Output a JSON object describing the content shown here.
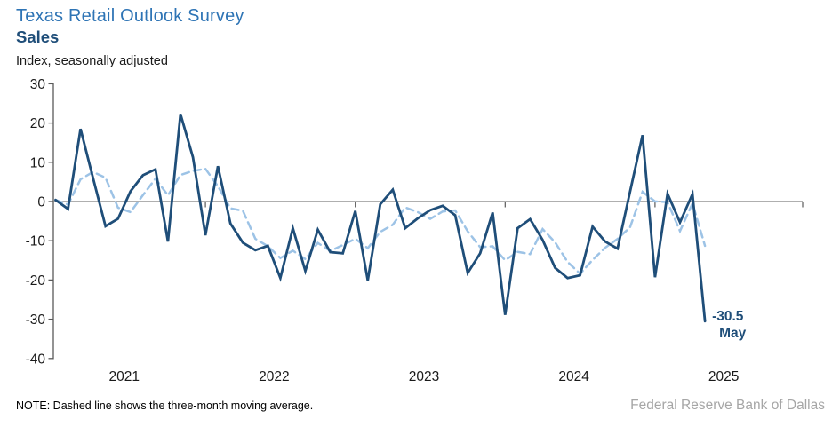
{
  "header": {
    "title": "Texas Retail Outlook Survey",
    "subtitle": "Sales",
    "units": "Index, seasonally adjusted"
  },
  "footer": {
    "note": "NOTE: Dashed line shows the three-month moving average.",
    "source": "Federal Reserve Bank of Dallas"
  },
  "colors": {
    "title_blue": "#2E74B5",
    "dark_blue": "#1F4E79",
    "light_blue": "#9DC3E6",
    "axis": "#595959",
    "zero_line": "#7F7F7F",
    "text": "#1a1a1a",
    "source_gray": "#A6A6A6"
  },
  "chart_data": {
    "type": "line",
    "title": "Texas Retail Outlook Survey — Sales",
    "ylabel": "Index, seasonally adjusted",
    "xlabel": "",
    "ylim": [
      -40,
      30
    ],
    "yticks": [
      30,
      20,
      10,
      0,
      -10,
      -20,
      -30,
      -40
    ],
    "grid": false,
    "legend_position": "none",
    "year_labels": [
      "2021",
      "2022",
      "2023",
      "2024",
      "2025"
    ],
    "months": [
      "2021-01",
      "2021-02",
      "2021-03",
      "2021-04",
      "2021-05",
      "2021-06",
      "2021-07",
      "2021-08",
      "2021-09",
      "2021-10",
      "2021-11",
      "2021-12",
      "2022-01",
      "2022-02",
      "2022-03",
      "2022-04",
      "2022-05",
      "2022-06",
      "2022-07",
      "2022-08",
      "2022-09",
      "2022-10",
      "2022-11",
      "2022-12",
      "2023-01",
      "2023-02",
      "2023-03",
      "2023-04",
      "2023-05",
      "2023-06",
      "2023-07",
      "2023-08",
      "2023-09",
      "2023-10",
      "2023-11",
      "2023-12",
      "2024-01",
      "2024-02",
      "2024-03",
      "2024-04",
      "2024-05",
      "2024-06",
      "2024-07",
      "2024-08",
      "2024-09",
      "2024-10",
      "2024-11",
      "2024-12",
      "2025-01",
      "2025-02",
      "2025-03",
      "2025-04",
      "2025-05"
    ],
    "series": [
      {
        "name": "Sales index",
        "style": "solid",
        "color": "#1F4E79",
        "values": [
          0.4,
          -1.9,
          18.5,
          6.0,
          -6.3,
          -4.4,
          2.6,
          6.7,
          8.2,
          -10.2,
          22.3,
          11.3,
          -8.6,
          9.0,
          -5.6,
          -10.5,
          -12.4,
          -11.3,
          -19.5,
          -6.8,
          -17.7,
          -7.2,
          -12.9,
          -13.2,
          -2.4,
          -20.1,
          -0.7,
          3.0,
          -6.8,
          -4.3,
          -2.2,
          -1.1,
          -3.5,
          -18.2,
          -13.2,
          -2.8,
          -28.9,
          -6.8,
          -4.5,
          -9.8,
          -16.9,
          -19.5,
          -18.8,
          -6.4,
          -10.2,
          -12.0,
          2.5,
          16.9,
          -19.3,
          2.0,
          -5.3,
          1.9,
          -30.5
        ]
      },
      {
        "name": "Three-month moving average",
        "style": "dashed",
        "color": "#9DC3E6",
        "derived": "trailing 3-month moving average of Sales index"
      }
    ],
    "annotation": {
      "value_label": "-30.5",
      "month_label": "May"
    }
  }
}
